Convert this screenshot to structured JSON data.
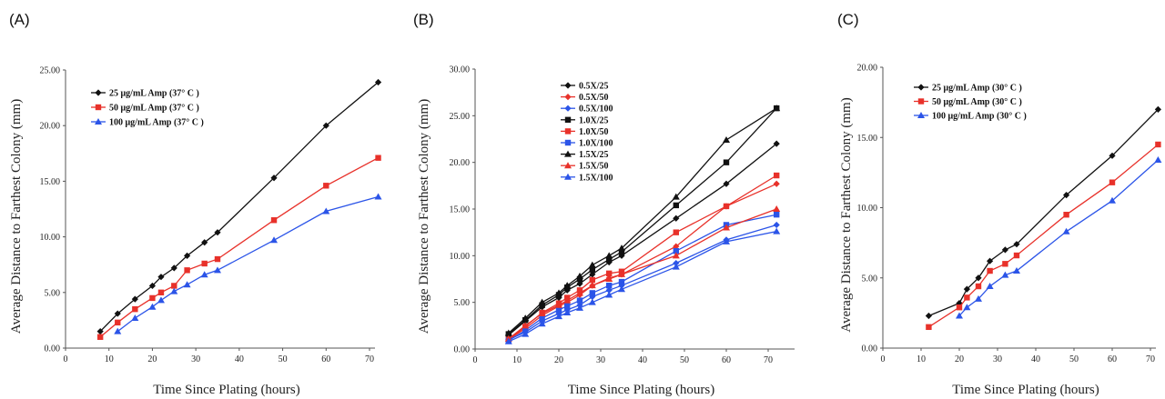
{
  "chart_data": [
    {
      "panel_label": "(A)",
      "type": "line",
      "xlabel": "Time Since Plating (hours)",
      "ylabel": "Average Distance to Farthest Colony (mm)",
      "xlim": [
        0,
        70
      ],
      "ylim": [
        0,
        25
      ],
      "xticks": [
        "0",
        "10",
        "20",
        "30",
        "40",
        "50",
        "60",
        "70"
      ],
      "yticks": [
        "0.00",
        "5.00",
        "10.00",
        "15.00",
        "20.00",
        "25.00"
      ],
      "legend_position": "top-left",
      "series": [
        {
          "name": "25 μg/mL Amp (37° C )",
          "color": "#111111",
          "marker": "diamond",
          "x": [
            8,
            12,
            16,
            20,
            22,
            25,
            28,
            32,
            35,
            48,
            60,
            72
          ],
          "y": [
            1.5,
            3.1,
            4.4,
            5.6,
            6.4,
            7.2,
            8.3,
            9.5,
            10.4,
            15.3,
            20.0,
            23.9
          ]
        },
        {
          "name": "50 μg/mL Amp (37° C )",
          "color": "#e8312a",
          "marker": "square",
          "x": [
            8,
            12,
            16,
            20,
            22,
            25,
            28,
            32,
            35,
            48,
            60,
            72
          ],
          "y": [
            1.0,
            2.3,
            3.5,
            4.5,
            5.0,
            5.6,
            7.0,
            7.6,
            8.0,
            11.5,
            14.6,
            17.1
          ]
        },
        {
          "name": "100 μg/mL Amp (37° C )",
          "color": "#2b54e8",
          "marker": "triangle",
          "x": [
            12,
            16,
            20,
            22,
            25,
            28,
            32,
            35,
            48,
            60,
            72
          ],
          "y": [
            1.5,
            2.7,
            3.7,
            4.3,
            5.1,
            5.7,
            6.6,
            7.0,
            9.7,
            12.3,
            13.6
          ]
        }
      ]
    },
    {
      "panel_label": "(B)",
      "type": "line",
      "xlabel": "Time Since Plating (hours)",
      "ylabel": "Average Distance to Farthest Colony (mm)",
      "xlim": [
        0,
        75
      ],
      "ylim": [
        0,
        30
      ],
      "xticks": [
        "0",
        "10",
        "20",
        "30",
        "40",
        "50",
        "60",
        "70"
      ],
      "yticks": [
        "0.00",
        "5.00",
        "10.00",
        "15.00",
        "20.00",
        "25.00",
        "30.00"
      ],
      "legend_position": "top-center",
      "series": [
        {
          "name": "0.5X/25",
          "color": "#111111",
          "marker": "diamond",
          "x": [
            8,
            12,
            16,
            20,
            22,
            25,
            28,
            32,
            35,
            48,
            60,
            72
          ],
          "y": [
            1.5,
            3.0,
            4.5,
            5.5,
            6.3,
            7.0,
            8.0,
            9.3,
            10.0,
            14.0,
            17.7,
            22.0
          ]
        },
        {
          "name": "0.5X/50",
          "color": "#e8312a",
          "marker": "diamond",
          "x": [
            8,
            12,
            16,
            20,
            22,
            25,
            28,
            32,
            35,
            48,
            60,
            72
          ],
          "y": [
            1.0,
            2.2,
            3.6,
            4.6,
            5.0,
            5.8,
            6.8,
            7.6,
            8.0,
            11.0,
            15.3,
            17.7
          ]
        },
        {
          "name": "0.5X/100",
          "color": "#2b54e8",
          "marker": "diamond",
          "x": [
            8,
            12,
            16,
            20,
            22,
            25,
            28,
            32,
            35,
            48,
            60,
            72
          ],
          "y": [
            1.0,
            1.8,
            3.0,
            3.8,
            4.2,
            4.7,
            5.6,
            6.3,
            6.8,
            9.2,
            11.7,
            13.3
          ]
        },
        {
          "name": "1.0X/25",
          "color": "#111111",
          "marker": "square",
          "x": [
            8,
            12,
            16,
            20,
            22,
            25,
            28,
            32,
            35,
            48,
            60,
            72
          ],
          "y": [
            1.6,
            3.1,
            4.7,
            5.8,
            6.6,
            7.5,
            8.5,
            9.6,
            10.4,
            15.4,
            20.0,
            25.8
          ]
        },
        {
          "name": "1.0X/50",
          "color": "#e8312a",
          "marker": "square",
          "x": [
            8,
            12,
            16,
            20,
            22,
            25,
            28,
            32,
            35,
            48,
            60,
            72
          ],
          "y": [
            1.0,
            2.4,
            3.9,
            4.9,
            5.5,
            6.3,
            7.4,
            8.1,
            8.3,
            12.5,
            15.3,
            18.6
          ]
        },
        {
          "name": "1.0X/100",
          "color": "#2b54e8",
          "marker": "square",
          "x": [
            8,
            12,
            16,
            20,
            22,
            25,
            28,
            32,
            35,
            48,
            60,
            72
          ],
          "y": [
            0.9,
            2.0,
            3.3,
            4.2,
            4.6,
            5.2,
            6.0,
            6.8,
            7.2,
            10.5,
            13.3,
            14.4
          ]
        },
        {
          "name": "1.5X/25",
          "color": "#111111",
          "marker": "triangle",
          "x": [
            8,
            12,
            16,
            20,
            22,
            25,
            28,
            32,
            35,
            48,
            60,
            72
          ],
          "y": [
            1.7,
            3.3,
            5.0,
            6.0,
            6.8,
            7.8,
            9.0,
            10.0,
            10.8,
            16.3,
            22.4,
            25.8
          ]
        },
        {
          "name": "1.5X/50",
          "color": "#e8312a",
          "marker": "triangle",
          "x": [
            8,
            12,
            16,
            20,
            22,
            25,
            28,
            32,
            35,
            48,
            60,
            72
          ],
          "y": [
            1.1,
            2.5,
            3.8,
            4.7,
            5.2,
            6.0,
            6.8,
            7.5,
            8.0,
            10.0,
            13.0,
            15.0
          ]
        },
        {
          "name": "1.5X/100",
          "color": "#2b54e8",
          "marker": "triangle",
          "x": [
            8,
            12,
            16,
            20,
            22,
            25,
            28,
            32,
            35,
            48,
            60,
            72
          ],
          "y": [
            0.8,
            1.6,
            2.7,
            3.5,
            3.9,
            4.4,
            5.0,
            5.8,
            6.4,
            8.8,
            11.5,
            12.6
          ]
        }
      ]
    },
    {
      "panel_label": "(C)",
      "type": "line",
      "xlabel": "Time Since Plating (hours)",
      "ylabel": "Average Distance to Farthest Colony (mm)",
      "xlim": [
        0,
        70
      ],
      "ylim": [
        0,
        20
      ],
      "xticks": [
        "0",
        "10",
        "20",
        "30",
        "40",
        "50",
        "60",
        "70"
      ],
      "yticks": [
        "0.00",
        "5.00",
        "10.00",
        "15.00",
        "20.00"
      ],
      "legend_position": "top-left",
      "series": [
        {
          "name": "25 μg/mL Amp (30° C )",
          "color": "#111111",
          "marker": "diamond",
          "x": [
            12,
            20,
            22,
            25,
            28,
            32,
            35,
            48,
            60,
            72
          ],
          "y": [
            2.3,
            3.2,
            4.2,
            5.0,
            6.2,
            7.0,
            7.4,
            10.9,
            13.7,
            17.0
          ]
        },
        {
          "name": "50 μg/mL Amp (30° C )",
          "color": "#e8312a",
          "marker": "square",
          "x": [
            12,
            20,
            22,
            25,
            28,
            32,
            35,
            48,
            60,
            72
          ],
          "y": [
            1.5,
            2.9,
            3.6,
            4.4,
            5.5,
            6.0,
            6.6,
            9.5,
            11.8,
            14.5
          ]
        },
        {
          "name": "100 μg/mL Amp (30° C )",
          "color": "#2b54e8",
          "marker": "triangle",
          "x": [
            20,
            22,
            25,
            28,
            32,
            35,
            48,
            60,
            72
          ],
          "y": [
            2.3,
            2.9,
            3.5,
            4.4,
            5.2,
            5.5,
            8.3,
            10.5,
            13.4
          ]
        }
      ]
    }
  ]
}
